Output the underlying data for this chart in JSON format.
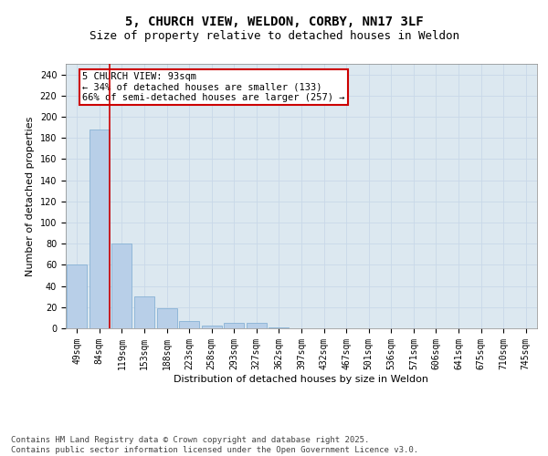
{
  "title": "5, CHURCH VIEW, WELDON, CORBY, NN17 3LF",
  "subtitle": "Size of property relative to detached houses in Weldon",
  "xlabel": "Distribution of detached houses by size in Weldon",
  "ylabel": "Number of detached properties",
  "bar_labels": [
    "49sqm",
    "84sqm",
    "119sqm",
    "153sqm",
    "188sqm",
    "223sqm",
    "258sqm",
    "293sqm",
    "327sqm",
    "362sqm",
    "397sqm",
    "432sqm",
    "467sqm",
    "501sqm",
    "536sqm",
    "571sqm",
    "606sqm",
    "641sqm",
    "675sqm",
    "710sqm",
    "745sqm"
  ],
  "bar_values": [
    60,
    188,
    80,
    30,
    19,
    7,
    3,
    5,
    5,
    1,
    0,
    0,
    0,
    0,
    0,
    0,
    0,
    0,
    0,
    0,
    0
  ],
  "bar_color": "#b8cfe8",
  "bar_edgecolor": "#7aaad0",
  "property_line_x": 1.45,
  "annotation_text": "5 CHURCH VIEW: 93sqm\n← 34% of detached houses are smaller (133)\n66% of semi-detached houses are larger (257) →",
  "annotation_box_color": "#ffffff",
  "annotation_box_edgecolor": "#cc0000",
  "ylim": [
    0,
    250
  ],
  "yticks": [
    0,
    20,
    40,
    60,
    80,
    100,
    120,
    140,
    160,
    180,
    200,
    220,
    240
  ],
  "grid_color": "#c8d8e8",
  "background_color": "#dce8f0",
  "footer_text": "Contains HM Land Registry data © Crown copyright and database right 2025.\nContains public sector information licensed under the Open Government Licence v3.0.",
  "title_fontsize": 10,
  "subtitle_fontsize": 9,
  "axis_label_fontsize": 8,
  "tick_fontsize": 7,
  "annotation_fontsize": 7.5,
  "footer_fontsize": 6.5
}
